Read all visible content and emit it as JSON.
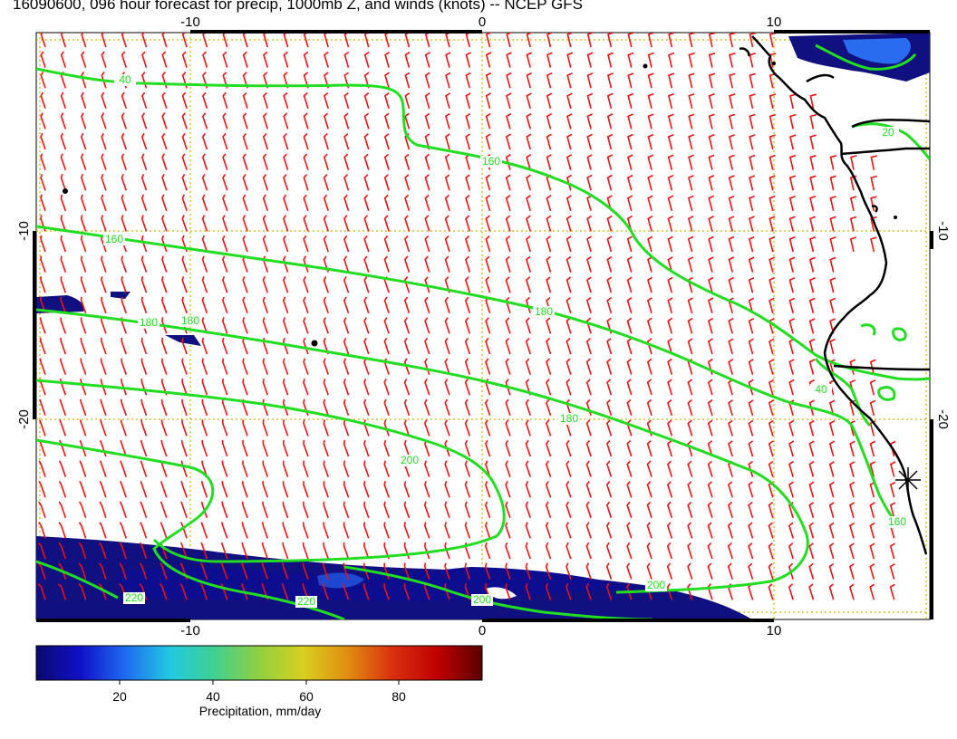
{
  "title": "16090600, 096 hour forecast for precip, 1000mb Z, and winds (knots) -- NCEP GFS",
  "axes": {
    "x_ticks": [
      "-10",
      "0",
      "10"
    ],
    "y_ticks": [
      "-10",
      "-20"
    ]
  },
  "colorbar": {
    "title": "Precipitation, mm/day",
    "ticks": [
      "20",
      "40",
      "60",
      "80"
    ],
    "stops": [
      "#0a0a6e",
      "#1010c8",
      "#1e6cf0",
      "#22c8e0",
      "#40d090",
      "#90d040",
      "#d8d020",
      "#e08c10",
      "#d83010",
      "#c00000",
      "#5a0000"
    ]
  },
  "contours": {
    "labels": [
      "40",
      "160",
      "160",
      "180",
      "180",
      "180",
      "200",
      "200",
      "220",
      "220",
      "200",
      "180",
      "160",
      "40",
      "20"
    ],
    "color": "#22dd22"
  },
  "winds": {
    "color": "#ee1111",
    "units": "knots"
  },
  "colors": {
    "land_outline": "#000000",
    "grid": "#c8b400",
    "precip": "#101080"
  }
}
